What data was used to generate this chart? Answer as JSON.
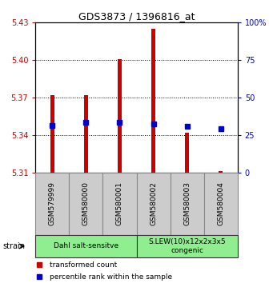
{
  "title": "GDS3873 / 1396816_at",
  "samples": [
    "GSM579999",
    "GSM580000",
    "GSM580001",
    "GSM580002",
    "GSM580003",
    "GSM580004"
  ],
  "red_values": [
    5.372,
    5.372,
    5.401,
    5.425,
    5.342,
    5.311
  ],
  "blue_values": [
    5.348,
    5.35,
    5.35,
    5.349,
    5.347,
    5.345
  ],
  "red_base": 5.31,
  "ylim_left": [
    5.31,
    5.43
  ],
  "ylim_right": [
    0,
    100
  ],
  "yticks_left": [
    5.31,
    5.34,
    5.37,
    5.4,
    5.43
  ],
  "yticks_right": [
    0,
    25,
    50,
    75,
    100
  ],
  "ytick_labels_left": [
    "5.31",
    "5.34",
    "5.37",
    "5.40",
    "5.43"
  ],
  "ytick_labels_right": [
    "0",
    "25",
    "50",
    "75",
    "100%"
  ],
  "left_color": "#cc0000",
  "right_color": "#0000cc",
  "bar_color": "#cc0000",
  "dot_color": "#0000cc",
  "group1_label": "Dahl salt-sensitve",
  "group2_label": "S.LEW(10)x12x2x3x5\ncongenic",
  "group_color": "#90ee90",
  "strain_label": "strain",
  "legend_red": "transformed count",
  "legend_blue": "percentile rank within the sample",
  "bar_width": 0.12,
  "blue_marker_size": 4,
  "tick_box_color": "#cccccc",
  "tick_box_edge": "#888888"
}
